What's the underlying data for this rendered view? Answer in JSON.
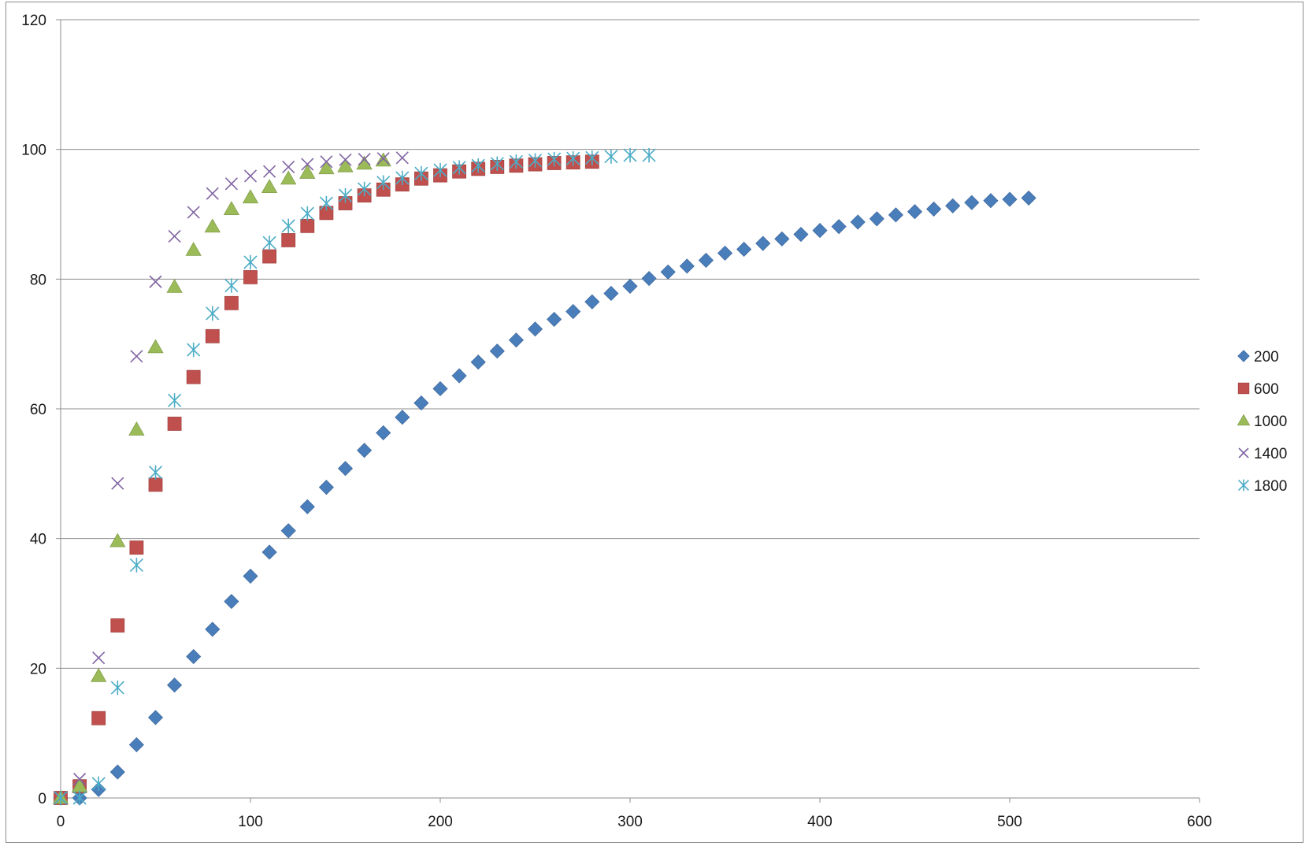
{
  "chart_data": {
    "type": "scatter",
    "title": "",
    "xlabel": "",
    "ylabel": "",
    "xlim": [
      0,
      600
    ],
    "ylim": [
      0,
      120
    ],
    "x_ticks": [
      0,
      100,
      200,
      300,
      400,
      500,
      600
    ],
    "y_ticks": [
      0,
      20,
      40,
      60,
      80,
      100,
      120
    ],
    "grid": "horizontal",
    "legend_position": "right",
    "series": [
      {
        "name": "200",
        "marker": "diamond",
        "color": "#4a7ebb",
        "x": [
          0,
          10,
          20,
          30,
          40,
          50,
          60,
          70,
          80,
          90,
          100,
          110,
          120,
          130,
          140,
          150,
          160,
          170,
          180,
          190,
          200,
          210,
          220,
          230,
          240,
          250,
          260,
          270,
          280,
          290,
          300,
          310,
          320,
          330,
          340,
          350,
          360,
          370,
          380,
          390,
          400,
          410,
          420,
          430,
          440,
          450,
          460,
          470,
          480,
          490,
          500,
          510
        ],
        "y": [
          0,
          0,
          1.3,
          4,
          8.2,
          12.4,
          17.4,
          21.8,
          26,
          30.3,
          34.2,
          37.9,
          41.2,
          44.9,
          47.9,
          50.8,
          53.6,
          56.3,
          58.7,
          60.9,
          63.1,
          65.1,
          67.2,
          68.9,
          70.6,
          72.3,
          73.8,
          75,
          76.5,
          77.8,
          78.9,
          80.1,
          81.1,
          82,
          82.9,
          84,
          84.6,
          85.5,
          86.2,
          86.9,
          87.5,
          88.1,
          88.8,
          89.3,
          89.9,
          90.4,
          90.8,
          91.3,
          91.8,
          92.1,
          92.3,
          92.5
        ]
      },
      {
        "name": "600",
        "marker": "square",
        "color": "#c0504d",
        "x": [
          0,
          10,
          20,
          30,
          40,
          50,
          60,
          70,
          80,
          90,
          100,
          110,
          120,
          130,
          140,
          150,
          160,
          170,
          180,
          190,
          200,
          210,
          220,
          230,
          240,
          250,
          260,
          270,
          280
        ],
        "y": [
          0,
          1.8,
          12.3,
          26.6,
          38.6,
          48.3,
          57.7,
          64.9,
          71.2,
          76.3,
          80.3,
          83.5,
          86,
          88.2,
          90.2,
          91.7,
          92.9,
          93.8,
          94.6,
          95.5,
          96,
          96.6,
          97,
          97.3,
          97.5,
          97.7,
          97.9,
          98,
          98.1
        ]
      },
      {
        "name": "1000",
        "marker": "triangle",
        "color": "#9bbb59",
        "x": [
          0,
          10,
          20,
          30,
          40,
          50,
          60,
          70,
          80,
          90,
          100,
          110,
          120,
          130,
          140,
          150,
          160,
          170
        ],
        "y": [
          0,
          1.8,
          18.8,
          39.6,
          56.8,
          69.5,
          78.8,
          84.5,
          88.1,
          90.8,
          92.6,
          94.2,
          95.5,
          96.4,
          97.1,
          97.4,
          97.8,
          98.3
        ]
      },
      {
        "name": "1400",
        "marker": "x",
        "color": "#8064a2",
        "x": [
          0,
          10,
          20,
          30,
          40,
          50,
          60,
          70,
          80,
          90,
          100,
          110,
          120,
          130,
          140,
          150,
          160,
          170,
          180
        ],
        "y": [
          0,
          2.9,
          21.6,
          48.5,
          68.1,
          79.6,
          86.6,
          90.3,
          93.2,
          94.7,
          95.9,
          96.6,
          97.3,
          97.7,
          98.1,
          98.4,
          98.5,
          98.6,
          98.7
        ]
      },
      {
        "name": "1800",
        "marker": "star",
        "color": "#4bacc6",
        "x": [
          0,
          10,
          20,
          30,
          40,
          50,
          60,
          70,
          80,
          90,
          100,
          110,
          120,
          130,
          140,
          150,
          160,
          170,
          180,
          190,
          200,
          210,
          220,
          230,
          240,
          250,
          260,
          270,
          280,
          290,
          300,
          310
        ],
        "y": [
          0,
          0,
          2.2,
          17,
          35.9,
          50.2,
          61.3,
          69.1,
          74.7,
          79,
          82.6,
          85.6,
          88.2,
          90.1,
          91.7,
          92.9,
          93.9,
          94.9,
          95.6,
          96.3,
          96.8,
          97.2,
          97.5,
          97.8,
          98.1,
          98.3,
          98.5,
          98.6,
          98.7,
          98.9,
          99.1,
          99.1
        ]
      }
    ]
  }
}
